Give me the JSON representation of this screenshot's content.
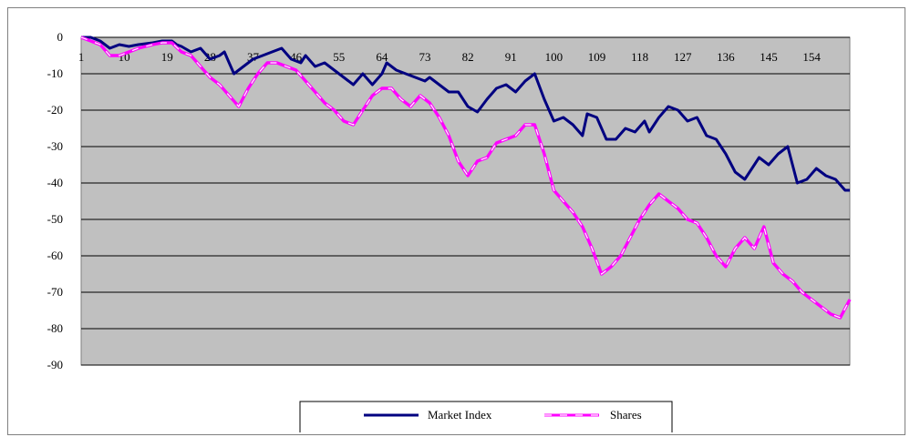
{
  "colors": {
    "plot_bg": "#c0c0c0",
    "market_index": "#000080",
    "shares": "#ff00ff",
    "shares_dash": "#ffffff"
  },
  "chart_data": {
    "type": "line",
    "title": "",
    "xlabel": "",
    "ylabel": "",
    "ylim": [
      -90,
      0
    ],
    "yticks": [
      0,
      -10,
      -20,
      -30,
      -40,
      -50,
      -60,
      -70,
      -80,
      -90
    ],
    "xlim": [
      1,
      162
    ],
    "xticks": [
      1,
      10,
      19,
      28,
      37,
      46,
      55,
      64,
      73,
      82,
      91,
      100,
      109,
      118,
      127,
      136,
      145,
      154
    ],
    "grid": true,
    "legend_position": "bottom",
    "series": [
      {
        "name": "Market Index",
        "points": [
          [
            1,
            0
          ],
          [
            3,
            0
          ],
          [
            5,
            -1
          ],
          [
            7,
            -3
          ],
          [
            9,
            -2
          ],
          [
            11,
            -2.5
          ],
          [
            13,
            -2
          ],
          [
            16,
            -1.5
          ],
          [
            18,
            -1
          ],
          [
            20,
            -1
          ],
          [
            21,
            -2
          ],
          [
            22,
            -2.5
          ],
          [
            24,
            -4
          ],
          [
            26,
            -3
          ],
          [
            28,
            -6
          ],
          [
            30,
            -5
          ],
          [
            31,
            -4
          ],
          [
            32,
            -7
          ],
          [
            33,
            -10
          ],
          [
            35,
            -8
          ],
          [
            37,
            -6
          ],
          [
            39,
            -5
          ],
          [
            41,
            -4
          ],
          [
            43,
            -3
          ],
          [
            45,
            -6
          ],
          [
            47,
            -7
          ],
          [
            48,
            -5
          ],
          [
            50,
            -8
          ],
          [
            52,
            -7
          ],
          [
            54,
            -9
          ],
          [
            56,
            -11
          ],
          [
            58,
            -13
          ],
          [
            60,
            -10
          ],
          [
            62,
            -13
          ],
          [
            64,
            -10
          ],
          [
            65,
            -7
          ],
          [
            67,
            -9
          ],
          [
            69,
            -10
          ],
          [
            71,
            -11
          ],
          [
            73,
            -12
          ],
          [
            74,
            -11
          ],
          [
            76,
            -13
          ],
          [
            78,
            -15
          ],
          [
            80,
            -15
          ],
          [
            82,
            -19
          ],
          [
            84,
            -20.5
          ],
          [
            86,
            -17
          ],
          [
            88,
            -14
          ],
          [
            90,
            -13
          ],
          [
            92,
            -15
          ],
          [
            94,
            -12
          ],
          [
            96,
            -10
          ],
          [
            98,
            -17
          ],
          [
            100,
            -23
          ],
          [
            102,
            -22
          ],
          [
            104,
            -24
          ],
          [
            106,
            -27
          ],
          [
            107,
            -21
          ],
          [
            109,
            -22
          ],
          [
            111,
            -28
          ],
          [
            113,
            -28
          ],
          [
            115,
            -25
          ],
          [
            117,
            -26
          ],
          [
            119,
            -23
          ],
          [
            120,
            -26
          ],
          [
            122,
            -22
          ],
          [
            124,
            -19
          ],
          [
            126,
            -20
          ],
          [
            128,
            -23
          ],
          [
            130,
            -22
          ],
          [
            132,
            -27
          ],
          [
            134,
            -28
          ],
          [
            136,
            -32
          ],
          [
            138,
            -37
          ],
          [
            140,
            -39
          ],
          [
            142,
            -35
          ],
          [
            143,
            -33
          ],
          [
            145,
            -35
          ],
          [
            147,
            -32
          ],
          [
            149,
            -30
          ],
          [
            151,
            -40
          ],
          [
            153,
            -39
          ],
          [
            155,
            -36
          ],
          [
            157,
            -38
          ],
          [
            159,
            -39
          ],
          [
            161,
            -42
          ],
          [
            162,
            -42
          ]
        ]
      },
      {
        "name": "Shares",
        "points": [
          [
            1,
            0
          ],
          [
            3,
            -1
          ],
          [
            5,
            -2
          ],
          [
            7,
            -5
          ],
          [
            9,
            -5
          ],
          [
            11,
            -4
          ],
          [
            13,
            -3
          ],
          [
            16,
            -2
          ],
          [
            18,
            -1.5
          ],
          [
            20,
            -1.5
          ],
          [
            22,
            -4
          ],
          [
            24,
            -5
          ],
          [
            26,
            -8
          ],
          [
            28,
            -11
          ],
          [
            30,
            -13
          ],
          [
            32,
            -16
          ],
          [
            34,
            -19
          ],
          [
            36,
            -14
          ],
          [
            38,
            -10
          ],
          [
            40,
            -7
          ],
          [
            42,
            -7
          ],
          [
            44,
            -8
          ],
          [
            46,
            -9
          ],
          [
            48,
            -12
          ],
          [
            50,
            -15
          ],
          [
            52,
            -18
          ],
          [
            54,
            -20
          ],
          [
            56,
            -23
          ],
          [
            58,
            -24
          ],
          [
            60,
            -20
          ],
          [
            62,
            -16
          ],
          [
            64,
            -14
          ],
          [
            66,
            -14
          ],
          [
            68,
            -17
          ],
          [
            70,
            -19
          ],
          [
            72,
            -16
          ],
          [
            74,
            -18
          ],
          [
            76,
            -22
          ],
          [
            78,
            -27
          ],
          [
            80,
            -34
          ],
          [
            82,
            -38
          ],
          [
            84,
            -34
          ],
          [
            86,
            -33
          ],
          [
            88,
            -29
          ],
          [
            90,
            -28
          ],
          [
            92,
            -27
          ],
          [
            94,
            -24
          ],
          [
            96,
            -24
          ],
          [
            98,
            -32
          ],
          [
            100,
            -42
          ],
          [
            102,
            -45
          ],
          [
            104,
            -48
          ],
          [
            106,
            -52
          ],
          [
            108,
            -58
          ],
          [
            110,
            -65
          ],
          [
            112,
            -63
          ],
          [
            114,
            -60
          ],
          [
            116,
            -55
          ],
          [
            118,
            -50
          ],
          [
            120,
            -46
          ],
          [
            122,
            -43
          ],
          [
            124,
            -45
          ],
          [
            126,
            -47
          ],
          [
            128,
            -50
          ],
          [
            130,
            -51
          ],
          [
            132,
            -55
          ],
          [
            134,
            -60
          ],
          [
            136,
            -63
          ],
          [
            138,
            -58
          ],
          [
            140,
            -55
          ],
          [
            142,
            -58
          ],
          [
            144,
            -52
          ],
          [
            146,
            -62
          ],
          [
            148,
            -65
          ],
          [
            150,
            -67
          ],
          [
            152,
            -70
          ],
          [
            154,
            -72
          ],
          [
            156,
            -74
          ],
          [
            158,
            -76
          ],
          [
            160,
            -77
          ],
          [
            162,
            -72
          ]
        ]
      }
    ]
  }
}
